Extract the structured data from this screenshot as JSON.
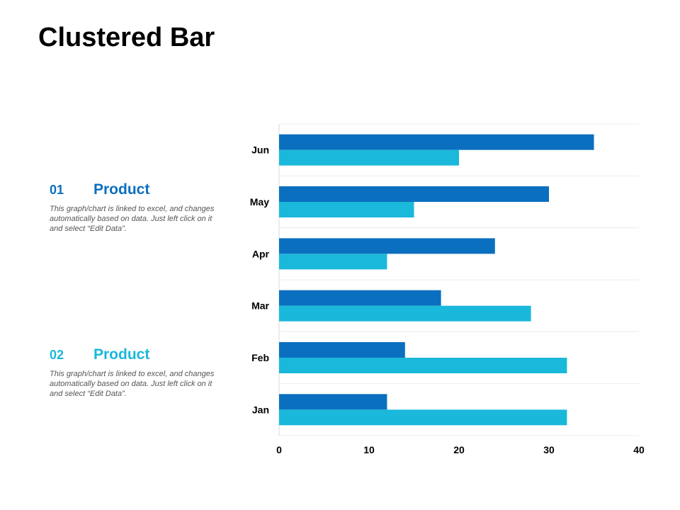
{
  "page": {
    "title": "Clustered Bar"
  },
  "legend": [
    {
      "number": "01",
      "label": "Product",
      "description": "This graph/chart is linked to excel, and changes automatically based on data. Just left click on it and select “Edit Data”.",
      "color": "#0b6fbf"
    },
    {
      "number": "02",
      "label": "Product",
      "description": "This graph/chart is linked to excel, and changes automatically based on data. Just left click on it and select “Edit Data”.",
      "color": "#1ab8da"
    }
  ],
  "chart_data": {
    "type": "bar",
    "orientation": "horizontal",
    "title": "",
    "xlabel": "",
    "ylabel": "",
    "categories": [
      "Jan",
      "Feb",
      "Mar",
      "Apr",
      "May",
      "Jun"
    ],
    "series": [
      {
        "name": "Product 01",
        "color": "#0b6fbf",
        "values": [
          12,
          14,
          18,
          24,
          30,
          35
        ]
      },
      {
        "name": "Product 02",
        "color": "#1ab8da",
        "values": [
          32,
          32,
          28,
          12,
          15,
          20
        ]
      }
    ],
    "xlim": [
      0,
      40
    ],
    "xticks": [
      0,
      10,
      20,
      30,
      40
    ],
    "grid": true
  }
}
